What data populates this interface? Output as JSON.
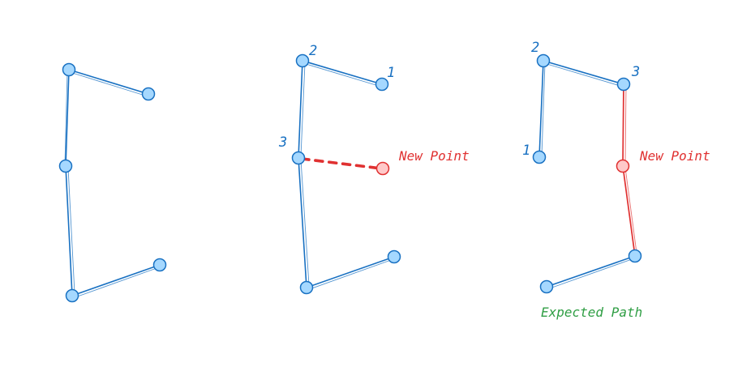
{
  "colors": {
    "blue_stroke": "#1971c2",
    "blue_fill": "#a5d8ff",
    "red_stroke": "#e03131",
    "red_fill": "#ffc9c9",
    "green_text": "#2f9e44",
    "background": "#ffffff"
  },
  "panel_2": {
    "label_1": "1",
    "label_2": "2",
    "label_3": "3",
    "new_point_label": "New Point"
  },
  "panel_3": {
    "label_1": "1",
    "label_2": "2",
    "label_3": "3",
    "new_point_label": "New Point",
    "caption": "Expected Path"
  }
}
